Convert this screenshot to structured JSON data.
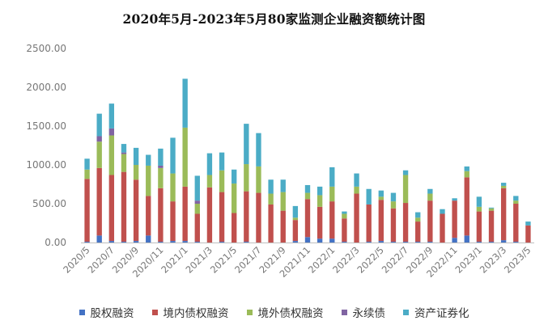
{
  "chart_data": {
    "type": "stacked-bar",
    "title": "2020年5月-2023年5月80家监测企业融资额统计图",
    "ylim": [
      0,
      2500
    ],
    "yticks": [
      "0.00",
      "500.00",
      "1000.00",
      "1500.00",
      "2000.00",
      "2500.00"
    ],
    "ytick_values": [
      0,
      500,
      1000,
      1500,
      2000,
      2500
    ],
    "categories": [
      "2020/5",
      "2020/6",
      "2020/7",
      "2020/8",
      "2020/9",
      "2020/10",
      "2020/11",
      "2020/12",
      "2021/1",
      "2021/2",
      "2021/3",
      "2021/4",
      "2021/5",
      "2021/6",
      "2021/7",
      "2021/8",
      "2021/9",
      "2021/10",
      "2021/11",
      "2021/12",
      "2022/1",
      "2022/2",
      "2022/3",
      "2022/4",
      "2022/5",
      "2022/6",
      "2022/7",
      "2022/8",
      "2022/9",
      "2022/10",
      "2022/11",
      "2022/12",
      "2023/1",
      "2023/2",
      "2023/3",
      "2023/4",
      "2023/5"
    ],
    "xtick_labels": [
      "2020/5",
      "2020/7",
      "2020/9",
      "2020/11",
      "2021/1",
      "2021/3",
      "2021/5",
      "2021/7",
      "2021/9",
      "2021/11",
      "2022/1",
      "2022/3",
      "2022/5",
      "2022/7",
      "2022/9",
      "2022/11",
      "2023/1",
      "2023/3",
      "2023/5"
    ],
    "series": [
      {
        "name": "股权融资",
        "color": "#4472c4",
        "values": [
          10,
          90,
          20,
          10,
          20,
          90,
          10,
          20,
          20,
          10,
          0,
          10,
          0,
          10,
          0,
          0,
          0,
          20,
          70,
          50,
          50,
          10,
          0,
          10,
          20,
          10,
          10,
          10,
          10,
          0,
          60,
          90,
          10,
          10,
          30,
          10,
          0
        ]
      },
      {
        "name": "境内债权融资",
        "color": "#c0504d",
        "values": [
          810,
          870,
          850,
          900,
          790,
          510,
          690,
          510,
          700,
          360,
          710,
          640,
          380,
          650,
          640,
          490,
          410,
          270,
          490,
          410,
          480,
          300,
          630,
          480,
          530,
          430,
          500,
          260,
          530,
          370,
          480,
          750,
          390,
          400,
          670,
          490,
          220
        ]
      },
      {
        "name": "境外债权融资",
        "color": "#9bbb59",
        "values": [
          120,
          340,
          510,
          230,
          190,
          390,
          260,
          360,
          760,
          130,
          160,
          280,
          380,
          350,
          340,
          140,
          240,
          30,
          80,
          150,
          190,
          60,
          90,
          0,
          40,
          90,
          360,
          50,
          90,
          0,
          0,
          80,
          60,
          30,
          30,
          40,
          0
        ]
      },
      {
        "name": "永续债",
        "color": "#8064a2",
        "values": [
          0,
          70,
          90,
          20,
          0,
          0,
          30,
          0,
          0,
          40,
          0,
          0,
          0,
          0,
          0,
          0,
          0,
          0,
          0,
          0,
          0,
          0,
          0,
          0,
          0,
          0,
          0,
          0,
          0,
          0,
          0,
          0,
          0,
          0,
          0,
          0,
          0
        ]
      },
      {
        "name": "资产证券化",
        "color": "#4bacc6",
        "values": [
          140,
          290,
          320,
          110,
          220,
          140,
          220,
          460,
          630,
          320,
          280,
          230,
          180,
          520,
          430,
          180,
          160,
          150,
          100,
          110,
          250,
          30,
          170,
          200,
          80,
          110,
          60,
          70,
          60,
          60,
          30,
          60,
          130,
          10,
          40,
          60,
          50
        ]
      }
    ]
  }
}
